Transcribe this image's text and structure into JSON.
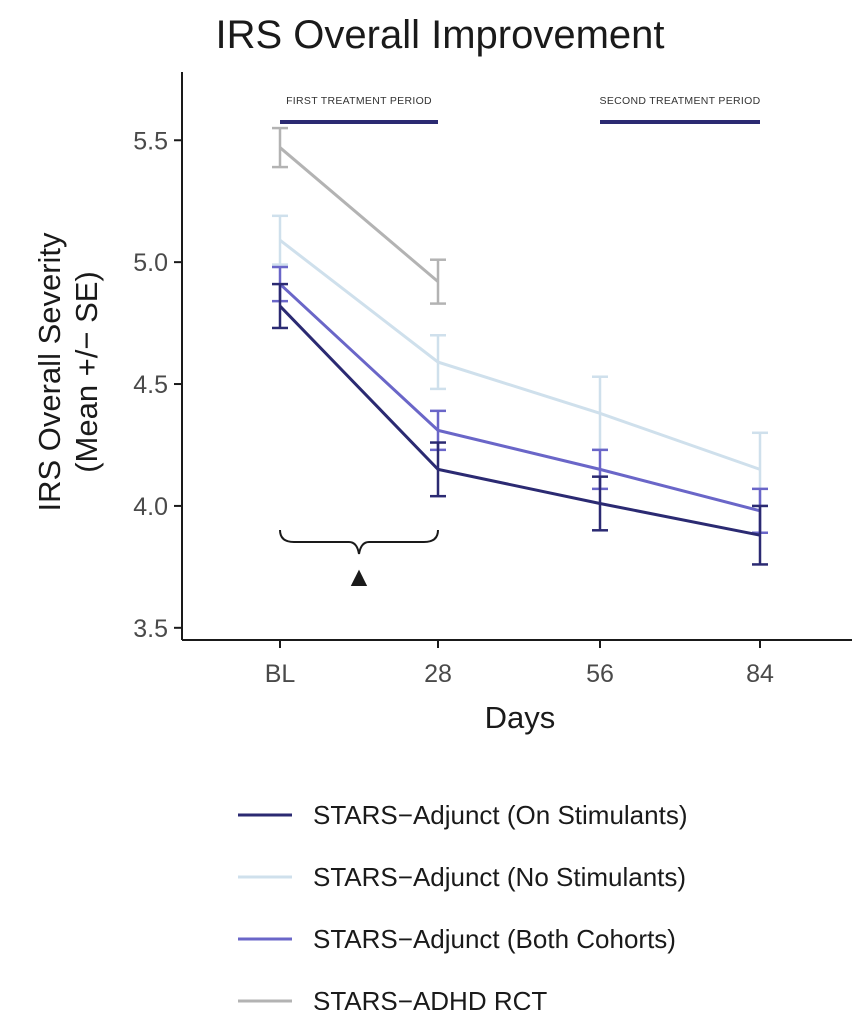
{
  "chart_data": {
    "type": "line",
    "title": "IRS Overall Improvement",
    "xlabel": "Days",
    "ylabel": [
      "IRS Overall Severity",
      "(Mean +/− SE)"
    ],
    "categories": [
      "BL",
      "28",
      "56",
      "84"
    ],
    "ylim": [
      3.45,
      5.78
    ],
    "yticks": [
      3.5,
      4.0,
      4.5,
      5.0,
      5.5
    ],
    "ytick_labels": [
      "3.5",
      "4.0",
      "4.5",
      "5.0",
      "5.5"
    ],
    "grid": false,
    "legend_position": "bottom",
    "series": [
      {
        "name": "STARS−Adjunct (On Stimulants)",
        "color": "#2b2a72",
        "values": [
          4.82,
          4.15,
          4.01,
          3.88
        ],
        "se": [
          0.09,
          0.11,
          0.11,
          0.12
        ]
      },
      {
        "name": "STARS−Adjunct (No Stimulants)",
        "color": "#cfe0ec",
        "values": [
          5.09,
          4.59,
          4.38,
          4.15
        ],
        "se": [
          0.1,
          0.11,
          0.15,
          0.15
        ]
      },
      {
        "name": "STARS−Adjunct (Both Cohorts)",
        "color": "#6a66c8",
        "values": [
          4.91,
          4.31,
          4.15,
          3.98
        ],
        "se": [
          0.07,
          0.08,
          0.08,
          0.09
        ]
      },
      {
        "name": "STARS−ADHD RCT",
        "color": "#b3b3b3",
        "values": [
          5.47,
          4.92,
          null,
          null
        ],
        "se": [
          0.08,
          0.09,
          null,
          null
        ]
      }
    ],
    "annotations": {
      "periods": [
        {
          "label": "FIRST TREATMENT PERIOD",
          "from": "BL",
          "to": "28",
          "color": "#2b2a72"
        },
        {
          "label": "SECOND TREATMENT PERIOD",
          "from": "56",
          "to": "84",
          "color": "#2b2a72"
        }
      ],
      "brace": {
        "from": "BL",
        "to": "28",
        "marker": "▲"
      }
    }
  }
}
